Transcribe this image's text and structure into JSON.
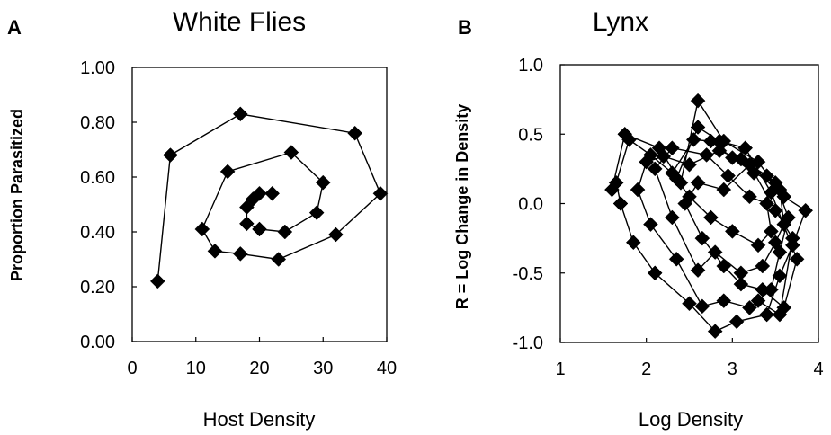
{
  "chart_data": [
    {
      "type": "scatter",
      "panel_label": "A",
      "title": "White Flies",
      "xlabel": "Host Density",
      "ylabel": "Proportion Parasitized",
      "xlim": [
        0,
        40
      ],
      "ylim": [
        0.0,
        1.0
      ],
      "x_ticks": [
        0,
        10,
        20,
        30,
        40
      ],
      "x_tick_labels": [
        "0",
        "10",
        "20",
        "30",
        "40"
      ],
      "y_ticks": [
        0.0,
        0.2,
        0.4,
        0.6,
        0.8,
        1.0
      ],
      "y_tick_labels": [
        "0.00",
        "0.20",
        "0.40",
        "0.60",
        "0.80",
        "1.00"
      ],
      "grid": false,
      "connected": true,
      "marker": "diamond",
      "series": [
        {
          "points": [
            [
              4,
              0.22
            ],
            [
              6,
              0.68
            ],
            [
              17,
              0.83
            ],
            [
              35,
              0.76
            ],
            [
              39,
              0.54
            ],
            [
              32,
              0.39
            ],
            [
              23,
              0.3
            ],
            [
              17,
              0.32
            ],
            [
              13,
              0.33
            ],
            [
              11,
              0.41
            ],
            [
              15,
              0.62
            ],
            [
              25,
              0.69
            ],
            [
              30,
              0.58
            ],
            [
              29,
              0.47
            ],
            [
              24,
              0.4
            ],
            [
              20,
              0.41
            ],
            [
              18,
              0.43
            ],
            [
              18,
              0.49
            ],
            [
              19,
              0.52
            ],
            [
              20,
              0.54
            ],
            [
              22,
              0.54
            ]
          ]
        }
      ]
    },
    {
      "type": "scatter",
      "panel_label": "B",
      "title": "Lynx",
      "xlabel": "Log Density",
      "ylabel": "R = Log Change in Density",
      "xlim": [
        1,
        4
      ],
      "ylim": [
        -1.0,
        1.0
      ],
      "x_ticks": [
        1,
        2,
        3,
        4
      ],
      "x_tick_labels": [
        "1",
        "2",
        "3",
        "4"
      ],
      "y_ticks": [
        -1.0,
        -0.5,
        0.0,
        0.5,
        1.0
      ],
      "y_tick_labels": [
        "-1.0",
        "-0.5",
        "0.0",
        "0.5",
        "1.0"
      ],
      "grid": false,
      "connected": true,
      "marker": "diamond",
      "series": [
        {
          "points": [
            [
              1.6,
              0.1
            ],
            [
              1.75,
              0.5
            ],
            [
              2.15,
              0.4
            ],
            [
              2.4,
              0.15
            ],
            [
              2.6,
              0.74
            ],
            [
              2.9,
              0.45
            ],
            [
              3.3,
              0.3
            ],
            [
              3.6,
              0.05
            ],
            [
              3.85,
              -0.05
            ],
            [
              3.7,
              -0.3
            ],
            [
              3.55,
              -0.52
            ],
            [
              3.4,
              -0.8
            ],
            [
              3.05,
              -0.85
            ],
            [
              2.8,
              -0.92
            ],
            [
              2.5,
              -0.72
            ],
            [
              2.1,
              -0.5
            ],
            [
              1.85,
              -0.28
            ],
            [
              1.7,
              0.0
            ],
            [
              1.65,
              0.15
            ],
            [
              1.8,
              0.46
            ],
            [
              2.05,
              0.35
            ],
            [
              2.3,
              0.22
            ],
            [
              2.55,
              0.46
            ],
            [
              2.75,
              0.45
            ],
            [
              3.0,
              0.33
            ],
            [
              3.25,
              0.22
            ],
            [
              3.5,
              0.15
            ],
            [
              3.65,
              -0.1
            ],
            [
              3.55,
              -0.35
            ],
            [
              3.45,
              -0.62
            ],
            [
              3.2,
              -0.75
            ],
            [
              2.9,
              -0.7
            ],
            [
              2.65,
              -0.74
            ],
            [
              2.35,
              -0.4
            ],
            [
              2.05,
              -0.15
            ],
            [
              1.9,
              0.1
            ],
            [
              2.0,
              0.3
            ],
            [
              2.2,
              0.34
            ],
            [
              2.5,
              0.28
            ],
            [
              2.85,
              0.38
            ],
            [
              3.1,
              0.32
            ],
            [
              3.4,
              0.2
            ],
            [
              3.55,
              0.1
            ],
            [
              3.6,
              -0.15
            ],
            [
              3.5,
              -0.28
            ],
            [
              3.35,
              -0.45
            ],
            [
              3.1,
              -0.5
            ],
            [
              2.8,
              -0.35
            ],
            [
              2.6,
              -0.48
            ],
            [
              2.3,
              -0.1
            ],
            [
              2.1,
              0.25
            ],
            [
              2.3,
              0.4
            ],
            [
              2.7,
              0.35
            ],
            [
              2.95,
              0.2
            ],
            [
              3.2,
              0.05
            ],
            [
              3.4,
              0.0
            ],
            [
              3.45,
              -0.2
            ],
            [
              3.3,
              -0.3
            ],
            [
              3.0,
              -0.2
            ],
            [
              2.75,
              -0.1
            ],
            [
              2.5,
              0.05
            ],
            [
              2.35,
              0.18
            ],
            [
              2.6,
              0.55
            ],
            [
              2.85,
              0.45
            ],
            [
              3.15,
              0.4
            ],
            [
              3.45,
              0.08
            ],
            [
              3.75,
              -0.4
            ],
            [
              3.6,
              -0.75
            ],
            [
              3.35,
              -0.62
            ],
            [
              3.1,
              -0.58
            ],
            [
              2.9,
              -0.45
            ],
            [
              2.65,
              -0.25
            ],
            [
              2.45,
              0.0
            ],
            [
              2.6,
              0.15
            ],
            [
              2.9,
              0.1
            ],
            [
              3.2,
              0.28
            ],
            [
              3.5,
              -0.05
            ],
            [
              3.7,
              -0.25
            ],
            [
              3.55,
              -0.8
            ],
            [
              3.3,
              -0.7
            ]
          ]
        }
      ]
    }
  ]
}
